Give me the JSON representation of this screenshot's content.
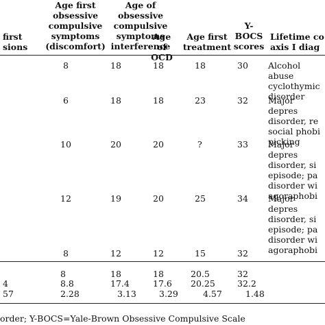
{
  "headers": {
    "c0": "first\nsions",
    "c1": "Age first\nobsessive\ncompulsive\nsymptoms\n(discomfort)",
    "c2": "Age of\nobsessive\ncompulsive\nsymptoms\ninterference",
    "c3": "Age\nof\nOCD",
    "c4": "Age first\ntreatment",
    "c5": "Y-\nBOCS\nscores",
    "c6": "Lifetime co\naxis I diag"
  },
  "rows": [
    {
      "discomfort": "8",
      "interference": "18",
      "ocd": "18",
      "treatment": "18",
      "ybocs": "30",
      "dx": "Alcohol abuse\n cyclothymic\n disorder"
    },
    {
      "discomfort": "6",
      "interference": "18",
      "ocd": "18",
      "treatment": "23",
      "ybocs": "32",
      "dx": "Major depres\n disorder, re\n social phobi\n picking"
    },
    {
      "discomfort": "10",
      "interference": "20",
      "ocd": "20",
      "treatment": "?",
      "ybocs": "33",
      "dx": "Major depres\n disorder, si\n episode; pa\n disorder wi\n agoraphobi"
    },
    {
      "discomfort": "12",
      "interference": "19",
      "ocd": "20",
      "treatment": "25",
      "ybocs": "34",
      "dx": "Major depres\n disorder, si\n episode; pa\n disorder wi\n agoraphobi"
    },
    {
      "discomfort": "8",
      "interference": "12",
      "ocd": "12",
      "treatment": "15",
      "ybocs": "32",
      "dx": ""
    }
  ],
  "summary": [
    {
      "first": "",
      "discomfort": "8",
      "interference": "18",
      "ocd": "18",
      "treatment": "20.5",
      "ybocs": "32"
    },
    {
      "first": "4",
      "discomfort": "8.8",
      "interference": "17.4",
      "ocd": "17.6",
      "treatment": "20.25",
      "ybocs": "32.2"
    },
    {
      "first": "57",
      "discomfort": "2.28",
      "interference": "3.13",
      "ocd": "3.29",
      "treatment": "4.57",
      "ybocs": "1.48"
    }
  ],
  "footnote": "order; Y-BOCS=Yale-Brown Obsessive Compulsive Scale"
}
